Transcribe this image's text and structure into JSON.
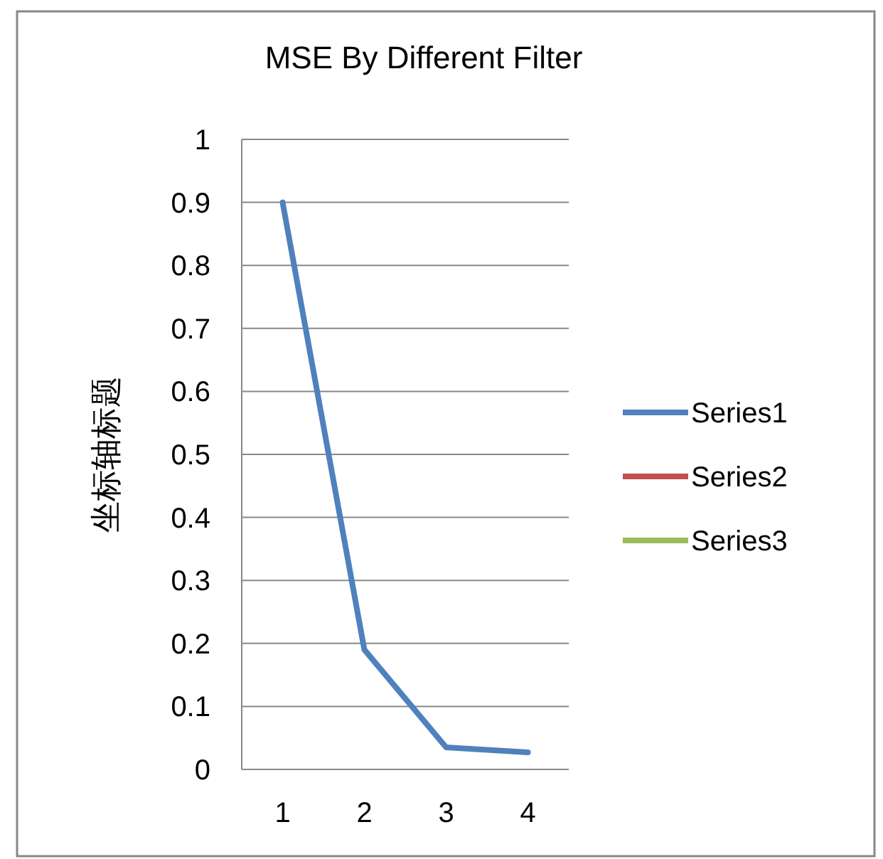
{
  "chart_data": {
    "type": "line",
    "title": "MSE By Different Filter",
    "ylabel": "坐标轴标题",
    "categories": [
      "1",
      "2",
      "3",
      "4"
    ],
    "series": [
      {
        "name": "Series1",
        "color": "#4f81bd",
        "values": [
          0.9,
          0.19,
          0.035,
          0.027
        ]
      },
      {
        "name": "Series2",
        "color": "#c0504d",
        "values": [
          null,
          null,
          null,
          null
        ]
      },
      {
        "name": "Series3",
        "color": "#9bbb59",
        "values": [
          null,
          null,
          null,
          null
        ]
      }
    ],
    "ylim": [
      0,
      1
    ],
    "yticks": [
      0,
      0.1,
      0.2,
      0.3,
      0.4,
      0.5,
      0.6,
      0.7,
      0.8,
      0.9,
      1
    ],
    "grid": "y",
    "legend": "right",
    "marker": "none",
    "line_style": "solid"
  }
}
